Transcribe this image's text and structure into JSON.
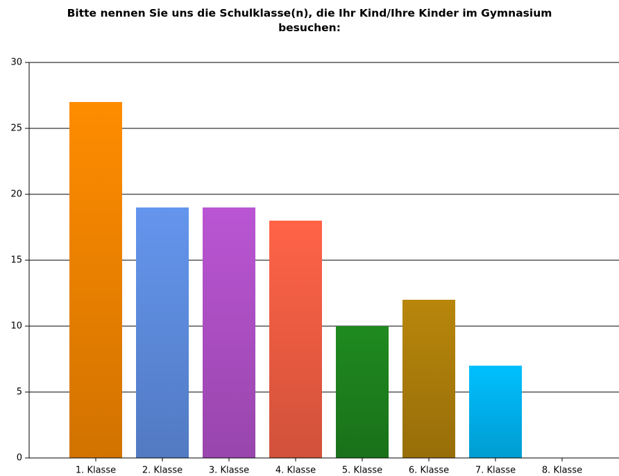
{
  "chart_data": {
    "type": "bar",
    "title": "Bitte nennen Sie uns die Schulklasse(n), die Ihr Kind/Ihre Kinder im Gymnasium besuchen:",
    "categories": [
      "1. Klasse",
      "2. Klasse",
      "3. Klasse",
      "4. Klasse",
      "5. Klasse",
      "6. Klasse",
      "7. Klasse",
      "8. Klasse"
    ],
    "values": [
      27,
      19,
      19,
      18,
      10,
      12,
      7,
      0
    ],
    "colors": [
      "#ff8c00",
      "#6495ed",
      "#ba55d3",
      "#ff6347",
      "#1f8a1f",
      "#b8860b",
      "#00bfff",
      "#888888"
    ],
    "ylim": [
      0,
      30
    ],
    "yticks": [
      0,
      5,
      10,
      15,
      20,
      25,
      30
    ],
    "grid": true
  }
}
